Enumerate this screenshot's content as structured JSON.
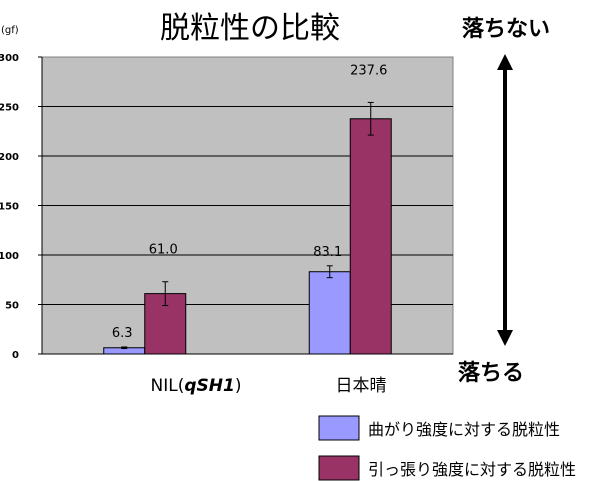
{
  "chart_data": {
    "type": "bar",
    "title": "脱粒性の比較",
    "unit_label": "(gf)",
    "categories": [
      "NIL(",
      "日本晴"
    ],
    "category_italic_part": [
      "qSH1",
      ""
    ],
    "category_suffix": [
      ")",
      ""
    ],
    "ylim": [
      0,
      300
    ],
    "yticks": [
      0,
      50,
      100,
      150,
      200,
      250,
      300
    ],
    "grid": true,
    "series": [
      {
        "name": "曲がり強度に対する脱粒性",
        "values": [
          6.3,
          83.1
        ],
        "errors": [
          0.8,
          6.0
        ],
        "labels": [
          "6.3",
          "83.1"
        ],
        "color": "#9999ff"
      },
      {
        "name": "引っ張り強度に対する脱粒性",
        "values": [
          61.0,
          237.6
        ],
        "errors": [
          12.0,
          16.5
        ],
        "labels": [
          "61.0",
          "237.6"
        ],
        "color": "#993366"
      }
    ],
    "plot_background": "#c0c0c0",
    "arrow_top_label": "落ちない",
    "arrow_bottom_label": "落ちる",
    "legend_position": "bottom-right"
  }
}
